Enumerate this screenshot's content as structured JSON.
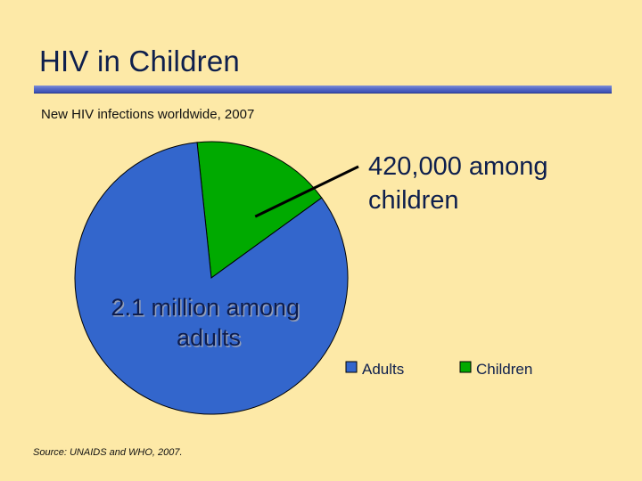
{
  "slide": {
    "title": "HIV in Children",
    "subtitle": "New HIV infections worldwide, 2007",
    "source": "Source: UNAIDS and WHO, 2007."
  },
  "colors": {
    "adults": "#3366cc",
    "children": "#00aa00",
    "title": "#0e1f4d",
    "background": "#fde9a7"
  },
  "chart_data": {
    "type": "pie",
    "title": "New HIV infections worldwide, 2007",
    "categories": [
      "Adults",
      "Children"
    ],
    "values": [
      2100000,
      420000
    ],
    "legend_position": "bottom-right",
    "legend": [
      "Adults",
      "Children"
    ],
    "annotations": {
      "adults": [
        "2.1 million among",
        "adults"
      ],
      "children": [
        "420,000 among",
        "children"
      ]
    }
  }
}
